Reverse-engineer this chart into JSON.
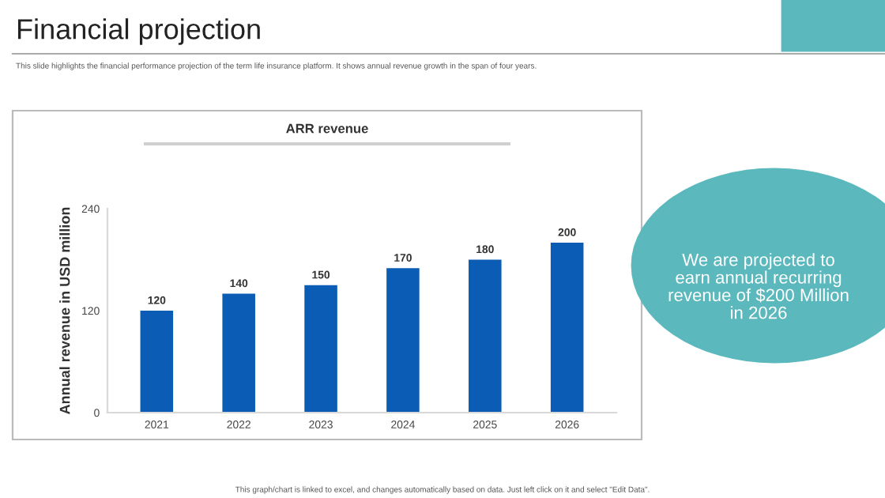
{
  "chart_data": {
    "type": "bar",
    "title": "Financial projection",
    "subtitle": "This slide highlights the financial performance projection of the term life insurance platform. It shows annual revenue growth in the span of four years.",
    "ylabel": "Annual revenue in USD million",
    "categories": [
      "2021",
      "2022",
      "2023",
      "2024",
      "2025",
      "2026"
    ],
    "values": [
      120,
      140,
      150,
      170,
      180,
      200
    ],
    "color": "#0a5cb4",
    "ylim": [
      0,
      240
    ],
    "yticks": [
      0,
      120,
      240
    ],
    "data_labels": true,
    "grid": false,
    "annotations": [
      "ARR revenue",
      "We are projected to\nearn annual recurring\nrevenue of $200 Million\nin 2026",
      "This graph/chart is linked to excel, and changes automatically based on data. Just left click on it and select \"Edit Data\"."
    ]
  }
}
